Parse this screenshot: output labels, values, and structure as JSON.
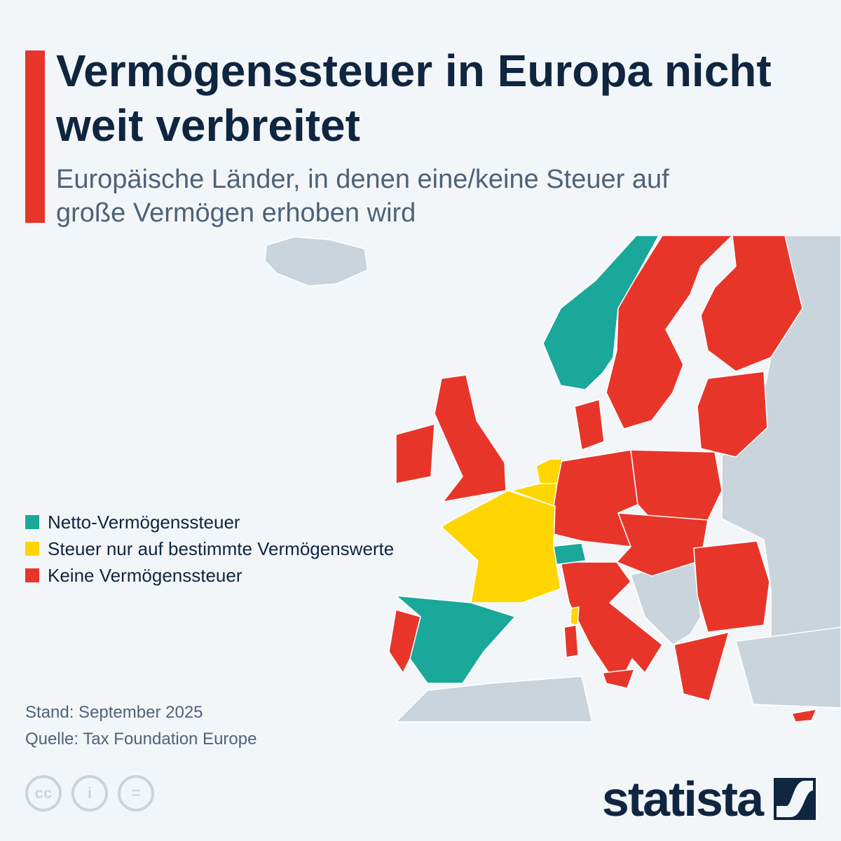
{
  "header": {
    "title": "Vermögenssteuer in Europa nicht weit verbreitet",
    "subtitle": "Europäische Länder, in denen eine/keine Steuer auf große Vermögen erhoben wird"
  },
  "legend": [
    {
      "label": "Netto-Vermögenssteuer",
      "color": "#1aa89a",
      "key": "net"
    },
    {
      "label": "Steuer nur auf bestimmte Vermögenswerte",
      "color": "#ffd500",
      "key": "partial"
    },
    {
      "label": "Keine Vermögenssteuer",
      "color": "#e8352a",
      "key": "none"
    }
  ],
  "no_data_color": "#c9d4dc",
  "map_data": {
    "NO": "net",
    "ES": "net",
    "CH": "net",
    "FR": "partial",
    "BE": "partial",
    "NL": "partial",
    "SE": "none",
    "FI": "none",
    "BALTIC": "none",
    "DK": "none",
    "DE": "none",
    "PL": "none",
    "CENTRAL": "none",
    "RO_BG": "none",
    "GR": "none",
    "IT": "none",
    "UK": "none",
    "IE": "none",
    "PT": "none",
    "CY": "none"
  },
  "footer": {
    "date": "Stand: September 2025",
    "source": "Quelle: Tax Foundation Europe",
    "license_icons": [
      "cc",
      "i",
      "="
    ],
    "brand": "statista"
  }
}
